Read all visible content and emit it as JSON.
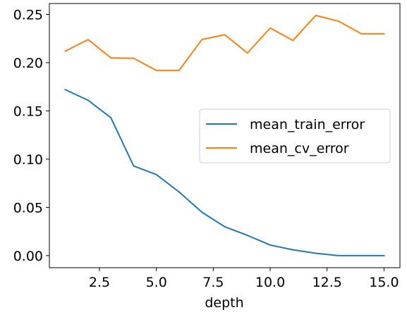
{
  "chart_data": {
    "type": "line",
    "title": "",
    "xlabel": "depth",
    "ylabel": "",
    "xlim": [
      0.3,
      15.7
    ],
    "ylim": [
      -0.0125,
      0.2613
    ],
    "x_ticks": [
      2.5,
      5.0,
      7.5,
      10.0,
      12.5,
      15.0
    ],
    "x_tick_labels": [
      "2.5",
      "5.0",
      "7.5",
      "10.0",
      "12.5",
      "15.0"
    ],
    "y_ticks": [
      0.0,
      0.05,
      0.1,
      0.15,
      0.2,
      0.25
    ],
    "y_tick_labels": [
      "0.00",
      "0.05",
      "0.10",
      "0.15",
      "0.20",
      "0.25"
    ],
    "grid": false,
    "legend_position": "center-right",
    "x": [
      1,
      2,
      3,
      4,
      5,
      6,
      7,
      8,
      9,
      10,
      11,
      12,
      13,
      14,
      15
    ],
    "series": [
      {
        "name": "mean_train_error",
        "color": "#1f77b4",
        "values": [
          0.172,
          0.161,
          0.143,
          0.093,
          0.084,
          0.066,
          0.045,
          0.03,
          0.021,
          0.011,
          0.006,
          0.0025,
          0.0,
          0.0,
          0.0
        ]
      },
      {
        "name": "mean_cv_error",
        "color": "#ff7f0e",
        "values": [
          0.212,
          0.224,
          0.205,
          0.2045,
          0.192,
          0.192,
          0.224,
          0.229,
          0.21,
          0.236,
          0.223,
          0.249,
          0.243,
          0.23,
          0.23
        ]
      }
    ]
  }
}
